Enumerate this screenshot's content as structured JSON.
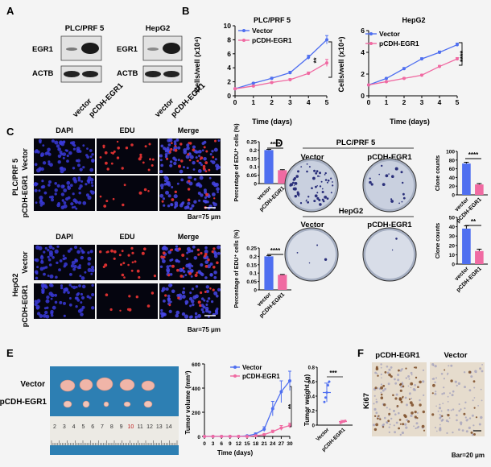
{
  "colors": {
    "vector": "#4f6ff0",
    "egr1": "#f06aa2",
    "dapi": "#3a3ad8",
    "edu": "#d83030"
  },
  "panel_letters": [
    "A",
    "B",
    "C",
    "D",
    "E",
    "F"
  ],
  "panelA": {
    "lines": [
      "PLC/PRF 5",
      "HepG2"
    ],
    "rows": [
      "EGR1",
      "ACTB"
    ],
    "lanes": [
      "vector",
      "pCDH-EGR1"
    ]
  },
  "panelB": {
    "titles": [
      "PLC/PRF 5",
      "HepG2"
    ],
    "ylabel": "Cells/well (x10⁴)",
    "xlabel": "Time (days)",
    "legend": [
      "Vector",
      "pCDH-EGR1"
    ],
    "sig": [
      "**",
      "****"
    ]
  },
  "panelC": {
    "cols": [
      "DAPI",
      "EDU",
      "Merge"
    ],
    "rows": [
      "Vector",
      "pCDH-EGR1"
    ],
    "lines": [
      "PLC/PRF 5",
      "HepG2"
    ],
    "scale": "Bar=75 μm",
    "ylabel": "Percentage of EDU⁺ cells (%)",
    "cats": [
      "vector",
      "pCDH-EGR1"
    ],
    "sig": "****"
  },
  "panelD": {
    "lines": [
      "PLC/PRF 5",
      "HepG2"
    ],
    "cols": [
      "Vector",
      "pCDH-EGR1"
    ],
    "ylabel": "Clone counts",
    "cats": [
      "vector",
      "pCDH-EGR1"
    ],
    "sig": [
      "****",
      "**"
    ]
  },
  "panelE": {
    "rows": [
      "Vector",
      "pCDH-EGR1"
    ],
    "ruler": [
      "2",
      "3",
      "4",
      "5",
      "6",
      "7",
      "8",
      "9",
      "10",
      "11",
      "12",
      "13",
      "14"
    ],
    "vol_ylabel": "Tumor volume (mm³)",
    "vol_xlabel": "Time (days)",
    "legend": [
      "Vector",
      "pCDH-EGR1"
    ],
    "vol_sig": "**",
    "wt_ylabel": "Tumor weight (g)",
    "wt_cats": [
      "Vector",
      "pCDH-EGR1"
    ],
    "wt_sig": "***"
  },
  "panelF": {
    "cols": [
      "pCDH-EGR1",
      "Vector"
    ],
    "row": "Ki67",
    "scale": "Bar=20 μm"
  },
  "chart_data": [
    {
      "type": "line",
      "title": "PLC/PRF 5",
      "xlabel": "Time (days)",
      "ylabel": "Cells/well (x10⁴)",
      "x": [
        0,
        1,
        2,
        3,
        4,
        5
      ],
      "xlim": [
        0,
        5
      ],
      "ylim": [
        0,
        10
      ],
      "yticks": [
        0,
        2,
        4,
        6,
        8,
        10
      ],
      "series": [
        {
          "name": "Vector",
          "values": [
            1.0,
            1.8,
            2.5,
            3.3,
            5.5,
            8.0
          ],
          "err": [
            0.1,
            0.1,
            0.15,
            0.2,
            0.3,
            0.6
          ]
        },
        {
          "name": "pCDH-EGR1",
          "values": [
            1.0,
            1.4,
            1.9,
            2.3,
            3.2,
            4.7
          ],
          "err": [
            0.1,
            0.1,
            0.1,
            0.15,
            0.2,
            0.5
          ]
        }
      ]
    },
    {
      "type": "line",
      "title": "HepG2",
      "xlabel": "Time (days)",
      "ylabel": "Cells/well (x10⁴)",
      "x": [
        0,
        1,
        2,
        3,
        4,
        5
      ],
      "xlim": [
        0,
        5
      ],
      "ylim": [
        0,
        6
      ],
      "yticks": [
        0,
        2,
        4,
        6
      ],
      "series": [
        {
          "name": "Vector",
          "values": [
            1.0,
            1.6,
            2.5,
            3.4,
            4.0,
            4.7
          ],
          "err": [
            0.05,
            0.08,
            0.1,
            0.1,
            0.12,
            0.15
          ]
        },
        {
          "name": "pCDH-EGR1",
          "values": [
            1.0,
            1.3,
            1.6,
            1.9,
            2.7,
            3.4
          ],
          "err": [
            0.05,
            0.06,
            0.08,
            0.08,
            0.1,
            0.12
          ]
        }
      ]
    },
    {
      "type": "bar",
      "title": "",
      "ylabel": "Percentage of EDU⁺ cells (%)",
      "categories": [
        "vector",
        "pCDH-EGR1"
      ],
      "values": [
        0.2,
        0.08
      ],
      "err": [
        0.004,
        0.003
      ],
      "ylim": [
        0,
        0.25
      ],
      "yticks": [
        0.0,
        0.05,
        0.1,
        0.15,
        0.2,
        0.25
      ]
    },
    {
      "type": "bar",
      "title": "",
      "ylabel": "Percentage of EDU⁺ cells (%)",
      "categories": [
        "vector",
        "pCDH-EGR1"
      ],
      "values": [
        0.2,
        0.09
      ],
      "err": [
        0.005,
        0.002
      ],
      "ylim": [
        0,
        0.25
      ],
      "yticks": [
        0.0,
        0.05,
        0.1,
        0.15,
        0.2,
        0.25
      ]
    },
    {
      "type": "bar",
      "title": "",
      "ylabel": "Clone counts",
      "categories": [
        "vector",
        "pCDH-EGR1"
      ],
      "values": [
        72,
        24
      ],
      "err": [
        3,
        2
      ],
      "ylim": [
        0,
        100
      ],
      "yticks": [
        0,
        20,
        40,
        60,
        80,
        100
      ]
    },
    {
      "type": "bar",
      "title": "",
      "ylabel": "Clone counts",
      "categories": [
        "vector",
        "pCDH-EGR1"
      ],
      "values": [
        38,
        14
      ],
      "err": [
        3,
        2
      ],
      "ylim": [
        0,
        50
      ],
      "yticks": [
        0,
        10,
        20,
        30,
        40,
        50
      ]
    },
    {
      "type": "line",
      "title": "",
      "xlabel": "Time (days)",
      "ylabel": "Tumor volume (mm³)",
      "x": [
        0,
        3,
        6,
        9,
        12,
        15,
        18,
        21,
        24,
        27,
        30
      ],
      "xlim": [
        0,
        30
      ],
      "ylim": [
        0,
        600
      ],
      "yticks": [
        0,
        200,
        400,
        600
      ],
      "series": [
        {
          "name": "Vector",
          "values": [
            0,
            0,
            0,
            0,
            0,
            5,
            20,
            60,
            230,
            370,
            460
          ],
          "err": [
            0,
            0,
            0,
            0,
            0,
            3,
            8,
            20,
            60,
            90,
            80
          ]
        },
        {
          "name": "pCDH-EGR1",
          "values": [
            0,
            0,
            0,
            0,
            0,
            0,
            5,
            15,
            40,
            70,
            90
          ],
          "err": [
            0,
            0,
            0,
            0,
            0,
            0,
            3,
            6,
            12,
            20,
            20
          ]
        }
      ]
    },
    {
      "type": "scatter",
      "title": "",
      "ylabel": "Tumor weight (g)",
      "categories": [
        "Vector",
        "pCDH-EGR1"
      ],
      "ylim": [
        0,
        0.8
      ],
      "yticks": [
        0.0,
        0.2,
        0.4,
        0.6,
        0.8
      ],
      "series": [
        {
          "name": "Vector",
          "values": [
            0.32,
            0.38,
            0.45,
            0.55,
            0.6
          ],
          "mean": 0.45,
          "sd": 0.13
        },
        {
          "name": "pCDH-EGR1",
          "values": [
            0.03,
            0.04,
            0.05,
            0.05,
            0.06
          ],
          "mean": 0.05,
          "sd": 0.015
        }
      ]
    }
  ]
}
